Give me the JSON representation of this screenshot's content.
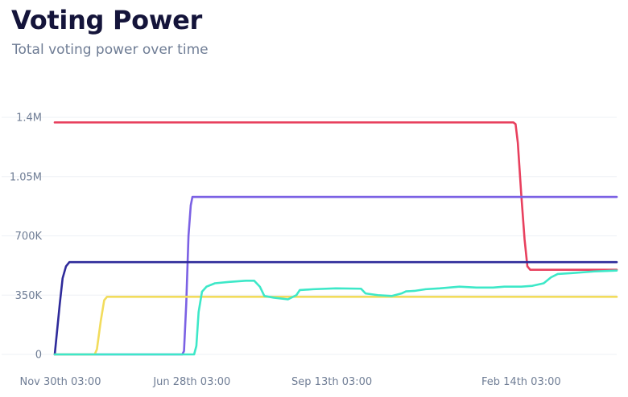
{
  "header": {
    "title": "Voting Power",
    "subtitle": "Total voting power over time"
  },
  "chart_data": {
    "type": "line",
    "title": "Voting Power",
    "subtitle": "Total voting power over time",
    "xlabel": "",
    "ylabel": "",
    "grid": true,
    "ylim": [
      0,
      1400000
    ],
    "y_ticks": [
      {
        "value": 0,
        "label": "0"
      },
      {
        "value": 350000,
        "label": "350K"
      },
      {
        "value": 700000,
        "label": "700K"
      },
      {
        "value": 1050000,
        "label": "1.05M"
      },
      {
        "value": 1400000,
        "label": "1.4M"
      }
    ],
    "x_tick_labels": [
      "Nov 30th 03:00",
      "Jun 28th 03:00",
      "Sep 13th 03:00",
      "Feb 14th 03:00"
    ],
    "x_range": [
      0,
      100
    ],
    "x_ticks_at": [
      1.0,
      24.4,
      49.3,
      83.0
    ],
    "series": [
      {
        "color": "#e8405e",
        "points": [
          [
            0,
            1370000
          ],
          [
            81.6,
            1370000
          ],
          [
            82.0,
            1360000
          ],
          [
            82.4,
            1250000
          ],
          [
            83.0,
            950000
          ],
          [
            83.6,
            680000
          ],
          [
            84.1,
            520000
          ],
          [
            84.6,
            500000
          ],
          [
            100,
            500000
          ]
        ]
      },
      {
        "color": "#7b61e4",
        "points": [
          [
            0,
            0
          ],
          [
            22.7,
            0
          ],
          [
            23.0,
            20000
          ],
          [
            23.4,
            300000
          ],
          [
            23.8,
            700000
          ],
          [
            24.2,
            880000
          ],
          [
            24.5,
            930000
          ],
          [
            100,
            930000
          ]
        ]
      },
      {
        "color": "#2e2a9a",
        "points": [
          [
            0,
            0
          ],
          [
            0.3,
            100000
          ],
          [
            0.9,
            300000
          ],
          [
            1.4,
            450000
          ],
          [
            2.0,
            520000
          ],
          [
            2.6,
            545000
          ],
          [
            100,
            545000
          ]
        ]
      },
      {
        "color": "#f2dc5c",
        "points": [
          [
            0,
            0
          ],
          [
            7.1,
            0
          ],
          [
            7.5,
            30000
          ],
          [
            8.2,
            200000
          ],
          [
            8.8,
            320000
          ],
          [
            9.3,
            340000
          ],
          [
            100,
            340000
          ]
        ]
      },
      {
        "color": "#3de8c8",
        "points": [
          [
            0,
            0
          ],
          [
            24.8,
            0
          ],
          [
            25.2,
            50000
          ],
          [
            25.6,
            250000
          ],
          [
            26.2,
            370000
          ],
          [
            27.0,
            400000
          ],
          [
            28.5,
            420000
          ],
          [
            31.0,
            428000
          ],
          [
            34.0,
            435000
          ],
          [
            35.5,
            435000
          ],
          [
            36.5,
            400000
          ],
          [
            37.3,
            345000
          ],
          [
            39.0,
            335000
          ],
          [
            41.5,
            325000
          ],
          [
            43.0,
            350000
          ],
          [
            43.6,
            380000
          ],
          [
            46.0,
            385000
          ],
          [
            50.0,
            390000
          ],
          [
            54.5,
            388000
          ],
          [
            55.3,
            360000
          ],
          [
            57.5,
            350000
          ],
          [
            60.0,
            345000
          ],
          [
            61.7,
            360000
          ],
          [
            62.5,
            372000
          ],
          [
            64.0,
            375000
          ],
          [
            66.0,
            385000
          ],
          [
            68.5,
            390000
          ],
          [
            72.0,
            400000
          ],
          [
            75.0,
            395000
          ],
          [
            78.0,
            395000
          ],
          [
            80.0,
            400000
          ],
          [
            83.0,
            400000
          ],
          [
            85.0,
            405000
          ],
          [
            87.0,
            420000
          ],
          [
            88.3,
            455000
          ],
          [
            89.5,
            475000
          ],
          [
            92.0,
            480000
          ],
          [
            96.0,
            490000
          ],
          [
            100,
            495000
          ]
        ]
      }
    ]
  }
}
